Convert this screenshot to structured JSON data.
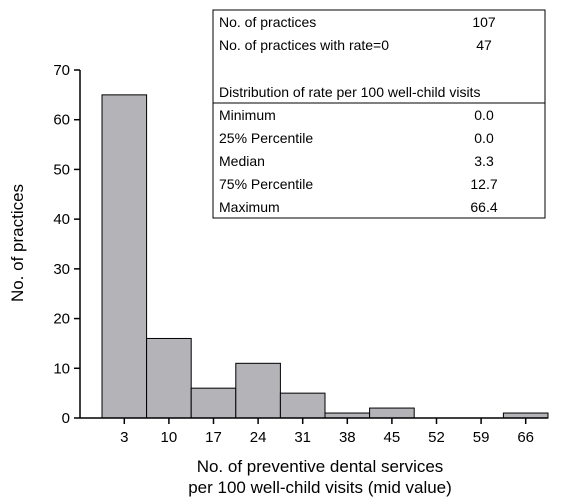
{
  "chart_data": {
    "type": "bar",
    "categories": [
      "3",
      "10",
      "17",
      "24",
      "31",
      "38",
      "45",
      "52",
      "59",
      "66"
    ],
    "values": [
      65,
      16,
      6,
      11,
      5,
      1,
      2,
      0,
      0,
      1
    ],
    "xlabel_line1": "No. of preventive dental services",
    "xlabel_line2": "per 100 well-child visits (mid value)",
    "ylabel": "No. of practices",
    "ylim": [
      0,
      70
    ],
    "yticks": [
      "0",
      "10",
      "20",
      "30",
      "40",
      "50",
      "60",
      "70"
    ],
    "bar_color": "#b3b3b8",
    "grid": false
  },
  "stats_box": {
    "rows_top": [
      {
        "label": "No. of practices",
        "value": "107"
      },
      {
        "label": "No. of practices with rate=0",
        "value": "47"
      }
    ],
    "heading": "Distribution of rate per 100 well-child visits",
    "rows_bottom": [
      {
        "label": "Minimum",
        "value": "0.0"
      },
      {
        "label": "25% Percentile",
        "value": "0.0"
      },
      {
        "label": "Median",
        "value": "3.3"
      },
      {
        "label": "75% Percentile",
        "value": "12.7"
      },
      {
        "label": "Maximum",
        "value": "66.4"
      }
    ]
  }
}
